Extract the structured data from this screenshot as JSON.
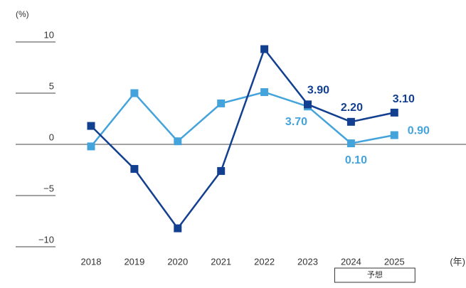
{
  "chart_data": {
    "type": "line",
    "title": "",
    "ylabel": "(%)",
    "xlabel": "(年)",
    "x": [
      "2018",
      "2019",
      "2020",
      "2021",
      "2022",
      "2023",
      "2024",
      "2025"
    ],
    "ylim": [
      -10,
      10
    ],
    "yticks": [
      10,
      5,
      0,
      -5,
      -10
    ],
    "ytick_labels": [
      "10",
      "5",
      "0",
      "−5",
      "−10"
    ],
    "grid": false,
    "legend": "none",
    "forecast": {
      "label": "予想",
      "x": [
        "2024",
        "2025"
      ]
    },
    "series": [
      {
        "color": "#44a3db",
        "marker": "square",
        "values": [
          -0.2,
          5.0,
          0.3,
          4.0,
          5.1,
          3.7,
          0.1,
          0.9
        ],
        "data_labels": [
          null,
          null,
          null,
          null,
          null,
          "3.70",
          "0.10",
          "0.90"
        ]
      },
      {
        "color": "#123f8f",
        "marker": "square",
        "values": [
          1.8,
          -2.4,
          -8.2,
          -2.6,
          9.3,
          3.9,
          2.2,
          3.1
        ],
        "data_labels": [
          null,
          null,
          null,
          null,
          null,
          "3.90",
          "2.20",
          "3.10"
        ]
      }
    ]
  }
}
